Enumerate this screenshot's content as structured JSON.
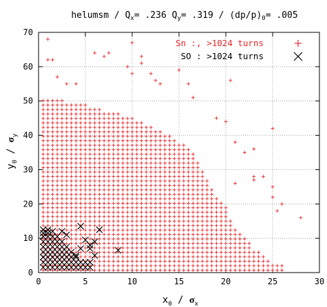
{
  "chart_data": {
    "type": "scatter",
    "title_parts": {
      "prefix": "helumsm / Q",
      "qx_sub": "x",
      "qx_val": "= .236 Q",
      "qy_sub": "y",
      "qy_val": "= .319 / (dp/p)",
      "dp_sub": "0",
      "dp_val": "= .005"
    },
    "xlabel": {
      "base": "x",
      "base_sub": "0",
      "sep": " / ",
      "sigma": "σ",
      "sigma_sub": "x"
    },
    "ylabel": {
      "base": "y",
      "base_sub": "0",
      "sep": " / ",
      "sigma": "σ",
      "sigma_sub": "y"
    },
    "xlim": [
      0,
      30
    ],
    "ylim": [
      0,
      70
    ],
    "xticks": [
      0,
      5,
      10,
      15,
      20,
      25,
      30
    ],
    "yticks": [
      0,
      10,
      20,
      30,
      40,
      50,
      60,
      70
    ],
    "grid": true,
    "legend_position": "top-right",
    "series": [
      {
        "name": "Sn :, >1024 turns",
        "marker": "plus",
        "color": "#e8262a",
        "grid_fill": {
          "dx": 0.5,
          "dy": 1.3,
          "boundary_x": [
            [
              0,
              51
            ],
            [
              1,
              51
            ],
            [
              2,
              51
            ],
            [
              3,
              50
            ],
            [
              4,
              50
            ],
            [
              5,
              49
            ],
            [
              6,
              48
            ],
            [
              7,
              47
            ],
            [
              8,
              47
            ],
            [
              9,
              46
            ],
            [
              10,
              45
            ],
            [
              11,
              44
            ],
            [
              12,
              43
            ],
            [
              13,
              41
            ],
            [
              14,
              40
            ],
            [
              15,
              38
            ],
            [
              16,
              37
            ],
            [
              17,
              33
            ],
            [
              18,
              28
            ],
            [
              19,
              22
            ],
            [
              20,
              19
            ],
            [
              21,
              13
            ],
            [
              22,
              10
            ],
            [
              23,
              7
            ],
            [
              24,
              5
            ],
            [
              25,
              3
            ],
            [
              26,
              2
            ],
            [
              26.5,
              0
            ]
          ]
        },
        "extra_points": [
          [
            1,
            68
          ],
          [
            1,
            62
          ],
          [
            1.5,
            62
          ],
          [
            2,
            57
          ],
          [
            6,
            64
          ],
          [
            7,
            63
          ],
          [
            7.5,
            64
          ],
          [
            10,
            67
          ],
          [
            11,
            63
          ],
          [
            11,
            61
          ],
          [
            12,
            58
          ],
          [
            12.5,
            56
          ],
          [
            15,
            59
          ],
          [
            13,
            55
          ],
          [
            16,
            55
          ],
          [
            16.5,
            51
          ],
          [
            19,
            45
          ],
          [
            20,
            44
          ],
          [
            21,
            38
          ],
          [
            22,
            35
          ],
          [
            23,
            36
          ],
          [
            25,
            42
          ],
          [
            21,
            26
          ],
          [
            23,
            28
          ],
          [
            23,
            27
          ],
          [
            24,
            28
          ],
          [
            25,
            25
          ],
          [
            25,
            22
          ],
          [
            28,
            16
          ],
          [
            26,
            20
          ],
          [
            25.5,
            18
          ],
          [
            20.5,
            56
          ],
          [
            9.5,
            60
          ],
          [
            10,
            58
          ],
          [
            3,
            55
          ],
          [
            4,
            55
          ]
        ]
      },
      {
        "name": "SO : >1024 turns",
        "marker": "x",
        "color": "#000000",
        "points": [
          [
            0.5,
            12.5
          ],
          [
            1.0,
            12.5
          ],
          [
            1.5,
            12.0
          ],
          [
            2.5,
            12.0
          ],
          [
            3.0,
            11.0
          ],
          [
            4.5,
            13.5
          ],
          [
            6.5,
            12.5
          ],
          [
            5,
            9.5
          ],
          [
            5.5,
            8
          ],
          [
            6,
            9
          ],
          [
            6,
            5
          ],
          [
            5.5,
            7
          ],
          [
            8.5,
            6.5
          ],
          [
            4.5,
            7
          ],
          [
            4,
            5
          ],
          [
            0.5,
            1.5
          ],
          [
            1,
            1.5
          ],
          [
            1.5,
            1.5
          ],
          [
            2,
            1.5
          ],
          [
            2.5,
            1.5
          ],
          [
            3,
            1.5
          ],
          [
            3.5,
            1.5
          ],
          [
            4,
            1.5
          ],
          [
            4.5,
            1.5
          ],
          [
            5,
            1.5
          ],
          [
            5.5,
            1.5
          ],
          [
            0.5,
            3
          ],
          [
            1,
            3
          ],
          [
            1.5,
            3
          ],
          [
            2,
            3
          ],
          [
            2.5,
            3
          ],
          [
            3,
            3
          ],
          [
            3.5,
            3
          ],
          [
            4,
            3
          ],
          [
            4.5,
            3
          ],
          [
            5,
            3
          ],
          [
            5.5,
            3
          ],
          [
            0.5,
            4.5
          ],
          [
            1,
            4.5
          ],
          [
            1.5,
            4.5
          ],
          [
            2,
            4.5
          ],
          [
            2.5,
            4.5
          ],
          [
            3,
            4.5
          ],
          [
            3.5,
            4.5
          ],
          [
            4,
            4.5
          ],
          [
            0.5,
            6
          ],
          [
            1,
            6
          ],
          [
            1.5,
            6
          ],
          [
            2,
            6
          ],
          [
            2.5,
            6
          ],
          [
            3,
            6
          ],
          [
            3.5,
            6
          ],
          [
            0.5,
            7.5
          ],
          [
            1,
            7.5
          ],
          [
            1.5,
            7.5
          ],
          [
            2,
            7.5
          ],
          [
            2.5,
            7.5
          ],
          [
            3,
            7.5
          ],
          [
            0.5,
            9
          ],
          [
            1,
            9
          ],
          [
            1.5,
            9
          ],
          [
            2,
            9
          ],
          [
            2.5,
            9
          ],
          [
            0.5,
            10.5
          ],
          [
            1,
            10.5
          ],
          [
            1.5,
            10.5
          ],
          [
            2,
            10.5
          ],
          [
            0.5,
            11.5
          ],
          [
            1,
            11.5
          ]
        ]
      }
    ]
  }
}
